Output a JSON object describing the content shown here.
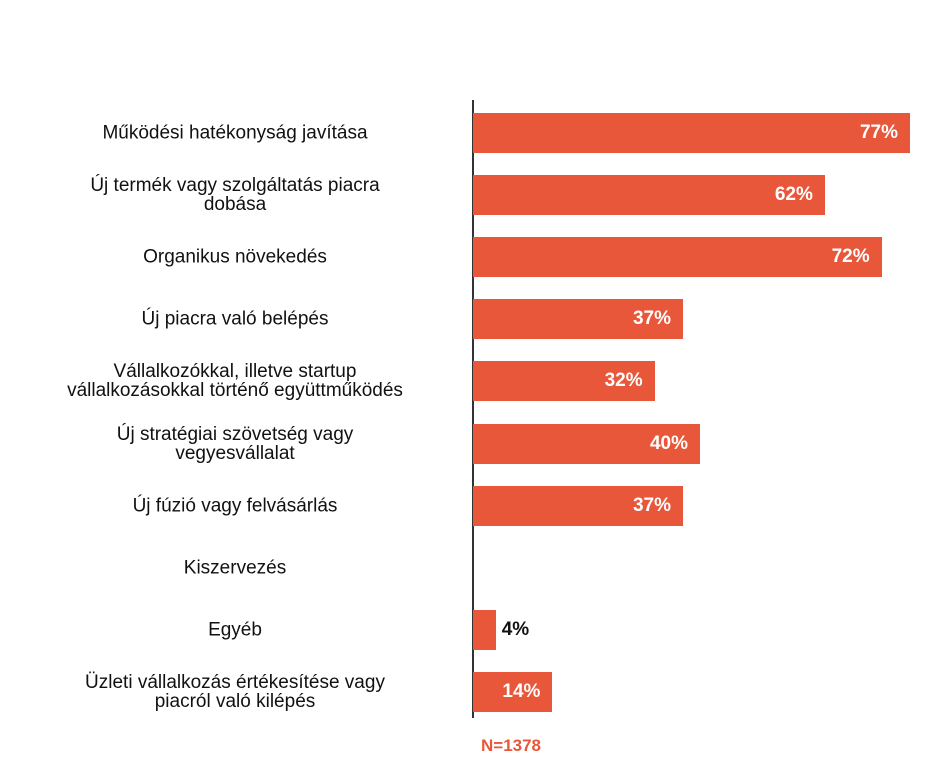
{
  "chart_data": {
    "type": "bar",
    "orientation": "horizontal",
    "categories": [
      "Működési hatékonyság javítása",
      "Új termék vagy szolgáltatás piacra\ndobása",
      "Organikus növekedés",
      "Új piacra való belépés",
      "Vállalkozókkal, illetve startup\nvállalkozásokkal történő együttműködés",
      "Új stratégiai szövetség vagy\nvegyesvállalat",
      "Új fúzió vagy felvásárlás",
      "Kiszervezés",
      "Egyéb",
      "Üzleti vállalkozás értékesítése vagy\npiacról való kilépés"
    ],
    "values": [
      77,
      62,
      72,
      37,
      32,
      40,
      37,
      null,
      4,
      14
    ],
    "value_labels": [
      "77%",
      "62%",
      "72%",
      "37%",
      "32%",
      "40%",
      "37%",
      null,
      "4%",
      "14%"
    ],
    "color": "#e8573a",
    "xlim": [
      0,
      80
    ],
    "note": "N=1378"
  }
}
